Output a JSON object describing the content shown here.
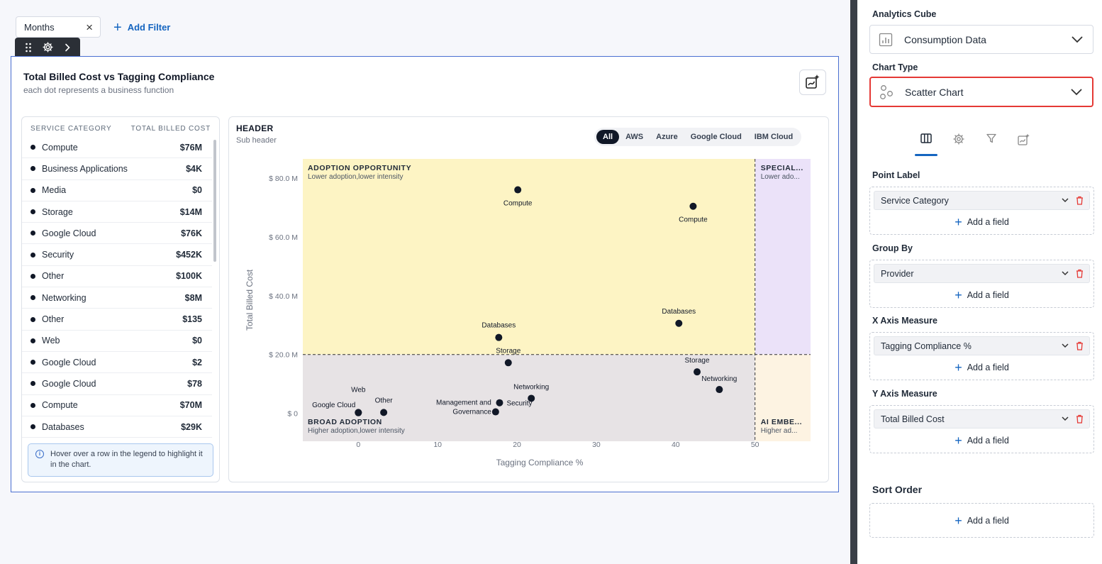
{
  "filters": {
    "chip_label": "Months",
    "add_filter_label": "Add Filter"
  },
  "widget": {
    "title": "Total Billed Cost vs Tagging Compliance",
    "subtitle": "each dot represents a business function"
  },
  "legend": {
    "col_category": "SERVICE CATEGORY",
    "col_cost": "TOTAL BILLED COST",
    "rows": [
      {
        "label": "Compute",
        "value": "$76M"
      },
      {
        "label": "Business Applications",
        "value": "$4K"
      },
      {
        "label": "Media",
        "value": "$0"
      },
      {
        "label": "Storage",
        "value": "$14M"
      },
      {
        "label": "Google Cloud",
        "value": "$76K"
      },
      {
        "label": "Security",
        "value": "$452K"
      },
      {
        "label": "Other",
        "value": "$100K"
      },
      {
        "label": "Networking",
        "value": "$8M"
      },
      {
        "label": "Other",
        "value": "$135"
      },
      {
        "label": "Web",
        "value": "$0"
      },
      {
        "label": "Google Cloud",
        "value": "$2"
      },
      {
        "label": "Google Cloud",
        "value": "$78"
      },
      {
        "label": "Compute",
        "value": "$70M"
      },
      {
        "label": "Databases",
        "value": "$29K"
      }
    ],
    "hint": "Hover over a row in the legend to highlight it in the chart."
  },
  "chart": {
    "header": "HEADER",
    "subheader": "Sub header",
    "provider_options": [
      "All",
      "AWS",
      "Azure",
      "Google Cloud",
      "IBM Cloud"
    ],
    "active_provider": "All"
  },
  "chart_data": {
    "type": "scatter",
    "xlabel": "Tagging Compliance %",
    "ylabel": "Total Billed Cost",
    "xlim": [
      -7,
      57
    ],
    "ylim": [
      -9.5,
      86.5
    ],
    "x_ticks": [
      0,
      10,
      20,
      30,
      40,
      50
    ],
    "y_ticks": [
      0,
      20,
      40,
      60,
      80
    ],
    "y_tick_labels": [
      "$ 0",
      "$ 20.0 M",
      "$ 40.0 M",
      "$ 60.0 M",
      "$ 80.0 M"
    ],
    "threshold_x": 50,
    "threshold_y": 20,
    "quadrants": [
      {
        "title": "ADOPTION OPPORTUNITY",
        "subtitle": "Lower adoption,lower intensity",
        "color": "#fdf4c4"
      },
      {
        "title": "SPECIAL...",
        "subtitle": "Lower ado...",
        "color": "#ebe2f9"
      },
      {
        "title": "BROAD ADOPTION",
        "subtitle": "Higher adoption,lower intensity",
        "color": "#e7e3e5"
      },
      {
        "title": "AI EMBE...",
        "subtitle": "Higher ad...",
        "color": "#fdf3e2"
      }
    ],
    "points": [
      {
        "label": "Compute",
        "x": 20.1,
        "y": 76
      },
      {
        "label": "Compute",
        "x": 42.2,
        "y": 70.4
      },
      {
        "label": "Databases",
        "x": 17.7,
        "y": 25.8
      },
      {
        "label": "Databases",
        "x": 40.4,
        "y": 30.6
      },
      {
        "label": "Storage",
        "x": 18.9,
        "y": 17.2
      },
      {
        "label": "Storage",
        "x": 42.7,
        "y": 14.1
      },
      {
        "label": "Networking",
        "x": 45.5,
        "y": 8.1
      },
      {
        "label": "Networking",
        "x": 21.8,
        "y": 5.1
      },
      {
        "label": "Security",
        "x": 17.8,
        "y": 3.6
      },
      {
        "label": "Management and Governance",
        "x": 17.3,
        "y": 0.5
      },
      {
        "label": "Web",
        "x": 0,
        "y": 0.3
      },
      {
        "label": "Other",
        "x": 3.2,
        "y": 0.3
      },
      {
        "label": "Google Cloud",
        "x": 0,
        "y": 0.2
      }
    ]
  },
  "config": {
    "analytics_cube_label": "Analytics Cube",
    "analytics_cube_value": "Consumption Data",
    "chart_type_label": "Chart Type",
    "chart_type_value": "Scatter Chart",
    "tabs": [
      "columns-icon",
      "gear-icon",
      "filter-icon",
      "ai-chart-icon"
    ],
    "sections": [
      {
        "label": "Point Label",
        "field": "Service Category",
        "add": "Add a field"
      },
      {
        "label": "Group By",
        "field": "Provider",
        "add": "Add a field"
      },
      {
        "label": "X Axis Measure",
        "field": "Tagging Compliance %",
        "add": "Add a field"
      },
      {
        "label": "Y Axis Measure",
        "field": "Total Billed Cost",
        "add": "Add a field"
      }
    ],
    "sort_order_label": "Sort Order",
    "sort_add": "Add a field",
    "accent_color": "#1565c0",
    "highlight_color": "#e53935"
  }
}
